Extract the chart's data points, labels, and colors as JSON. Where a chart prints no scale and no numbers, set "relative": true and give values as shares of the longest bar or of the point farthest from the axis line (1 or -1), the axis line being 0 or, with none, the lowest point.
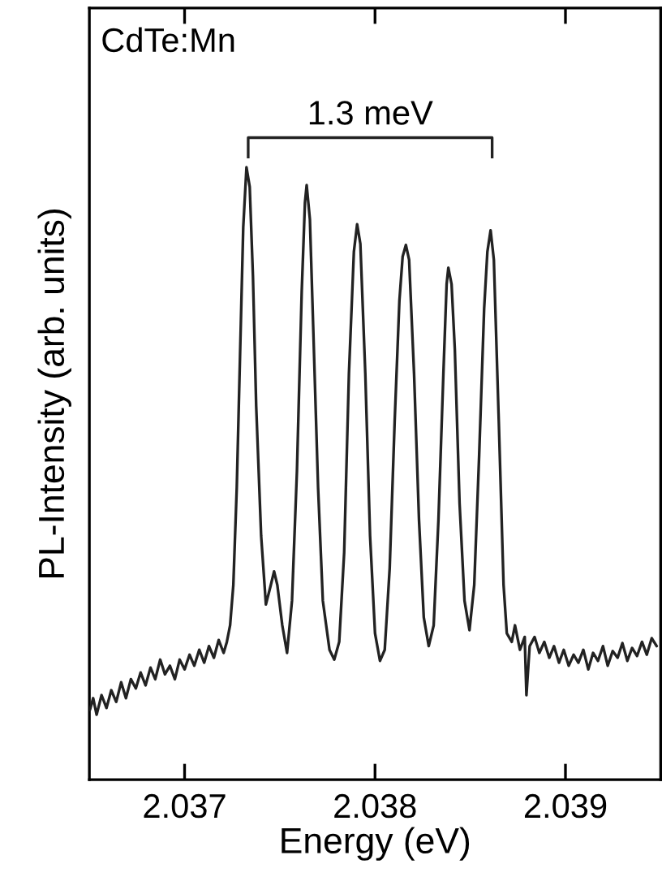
{
  "chart_data": {
    "type": "line",
    "relative": true,
    "xlabel": "Energy (eV)",
    "ylabel": "PL-Intensity (arb. units)",
    "xlim": [
      2.0365,
      2.0395
    ],
    "xticks": [
      2.037,
      2.038,
      2.039
    ],
    "tick_labels": "x",
    "grid": false,
    "legend": false,
    "marker": "none",
    "line_style": "solid",
    "annotations": [
      "CdTe:Mn",
      "1.3 meV"
    ],
    "series": [
      {
        "color": "#222222",
        "x": [
          2.036503,
          2.03652,
          2.036538,
          2.036564,
          2.03659,
          2.036615,
          2.036641,
          2.036667,
          2.036692,
          2.036718,
          2.036744,
          2.036769,
          2.036795,
          2.036821,
          2.036846,
          2.036872,
          2.036897,
          2.036923,
          2.036949,
          2.036974,
          2.037,
          2.037026,
          2.037051,
          2.037077,
          2.037103,
          2.037128,
          2.037154,
          2.037179,
          2.037205,
          2.037222,
          2.037239,
          2.037256,
          2.037274,
          2.037291,
          2.037308,
          2.037325,
          2.037342,
          2.037359,
          2.037376,
          2.037402,
          2.037427,
          2.037453,
          2.03747,
          2.037487,
          2.037513,
          2.037538,
          2.037564,
          2.03759,
          2.037615,
          2.037632,
          2.037641,
          2.037658,
          2.037675,
          2.037701,
          2.037726,
          2.037761,
          2.037786,
          2.037812,
          2.037838,
          2.037863,
          2.037889,
          2.037906,
          2.037923,
          2.037949,
          2.037974,
          2.038,
          2.038026,
          2.038051,
          2.038077,
          2.038103,
          2.038128,
          2.038145,
          2.038162,
          2.038179,
          2.038205,
          2.038231,
          2.038256,
          2.038282,
          2.038308,
          2.038333,
          2.038359,
          2.038376,
          2.038385,
          2.038402,
          2.038419,
          2.038444,
          2.03847,
          2.038496,
          2.038521,
          2.038547,
          2.038573,
          2.03859,
          2.038607,
          2.038624,
          2.03865,
          2.038675,
          2.038692,
          2.038718,
          2.038735,
          2.038761,
          2.038786,
          2.038795,
          2.038812,
          2.038838,
          2.038863,
          2.038889,
          2.038915,
          2.03894,
          2.038966,
          2.038991,
          2.039017,
          2.039043,
          2.039068,
          2.039094,
          2.03912,
          2.039145,
          2.039171,
          2.039197,
          2.039222,
          2.039248,
          2.039274,
          2.039299,
          2.039325,
          2.03935,
          2.039376,
          2.039402,
          2.039427,
          2.039453,
          2.039479
        ],
        "values": [
          0.114,
          0.133,
          0.106,
          0.138,
          0.117,
          0.146,
          0.127,
          0.159,
          0.133,
          0.164,
          0.149,
          0.175,
          0.154,
          0.183,
          0.164,
          0.196,
          0.172,
          0.186,
          0.164,
          0.196,
          0.18,
          0.204,
          0.186,
          0.212,
          0.191,
          0.218,
          0.199,
          0.228,
          0.207,
          0.225,
          0.252,
          0.318,
          0.477,
          0.69,
          0.902,
          1.0,
          0.968,
          0.822,
          0.61,
          0.398,
          0.286,
          0.318,
          0.34,
          0.318,
          0.252,
          0.207,
          0.292,
          0.504,
          0.796,
          0.942,
          0.971,
          0.915,
          0.743,
          0.477,
          0.292,
          0.212,
          0.196,
          0.225,
          0.371,
          0.663,
          0.862,
          0.907,
          0.875,
          0.663,
          0.398,
          0.239,
          0.194,
          0.212,
          0.345,
          0.584,
          0.782,
          0.854,
          0.873,
          0.849,
          0.663,
          0.424,
          0.265,
          0.218,
          0.252,
          0.424,
          0.663,
          0.809,
          0.836,
          0.809,
          0.703,
          0.451,
          0.292,
          0.244,
          0.318,
          0.531,
          0.769,
          0.862,
          0.897,
          0.849,
          0.584,
          0.318,
          0.239,
          0.225,
          0.252,
          0.212,
          0.233,
          0.138,
          0.218,
          0.233,
          0.207,
          0.225,
          0.199,
          0.218,
          0.191,
          0.212,
          0.186,
          0.204,
          0.191,
          0.212,
          0.18,
          0.207,
          0.194,
          0.218,
          0.186,
          0.21,
          0.199,
          0.223,
          0.194,
          0.215,
          0.202,
          0.225,
          0.204,
          0.231,
          0.218
        ]
      }
    ]
  }
}
